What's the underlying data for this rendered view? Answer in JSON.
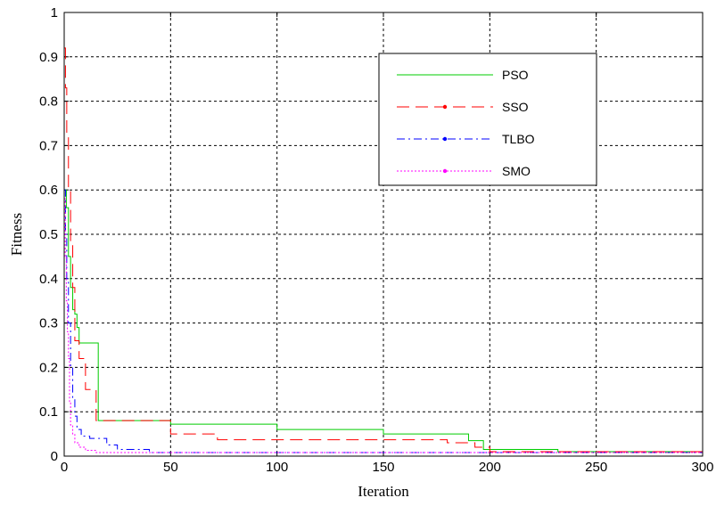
{
  "chart_data": {
    "type": "line",
    "xlabel": "Iteration",
    "ylabel": "Fitness",
    "xlim": [
      0,
      300
    ],
    "ylim": [
      0,
      1
    ],
    "xticks": [
      0,
      50,
      100,
      150,
      200,
      250,
      300
    ],
    "yticks": [
      0,
      0.1,
      0.2,
      0.3,
      0.4,
      0.5,
      0.6,
      0.7,
      0.8,
      0.9,
      1
    ],
    "grid": true,
    "legend_position": "top-right",
    "series": [
      {
        "name": "PSO",
        "color": "#00cc00",
        "style": "solid",
        "marker": "none",
        "x": [
          0,
          1,
          1,
          2,
          2,
          3,
          3,
          4,
          4,
          5,
          5,
          6,
          6,
          7,
          7,
          10,
          10,
          16,
          16,
          50,
          50,
          100,
          100,
          150,
          150,
          190,
          190,
          197,
          197,
          232,
          232,
          300
        ],
        "y": [
          0.6,
          0.6,
          0.56,
          0.56,
          0.45,
          0.45,
          0.38,
          0.38,
          0.33,
          0.33,
          0.32,
          0.32,
          0.29,
          0.29,
          0.255,
          0.255,
          0.255,
          0.255,
          0.08,
          0.08,
          0.072,
          0.072,
          0.06,
          0.06,
          0.05,
          0.05,
          0.035,
          0.035,
          0.015,
          0.015,
          0.01,
          0.01
        ]
      },
      {
        "name": "SSO",
        "color": "#ff0000",
        "style": "dash",
        "marker": "dot",
        "x": [
          0,
          0.6,
          0.6,
          1.2,
          1.2,
          2,
          2,
          3,
          3,
          4,
          4,
          5,
          5,
          7,
          7,
          10,
          10,
          15,
          15,
          50,
          50,
          72,
          72,
          180,
          180,
          193,
          193,
          200,
          200,
          300
        ],
        "y": [
          0.92,
          0.92,
          0.83,
          0.83,
          0.72,
          0.72,
          0.6,
          0.6,
          0.48,
          0.48,
          0.38,
          0.38,
          0.26,
          0.26,
          0.22,
          0.22,
          0.15,
          0.15,
          0.08,
          0.08,
          0.05,
          0.05,
          0.037,
          0.037,
          0.03,
          0.03,
          0.02,
          0.02,
          0.01,
          0.01
        ]
      },
      {
        "name": "TLBO",
        "color": "#0000ff",
        "style": "dashdot",
        "marker": "dot",
        "x": [
          0,
          0.6,
          0.6,
          1.2,
          1.2,
          2,
          2,
          3,
          3,
          4,
          4,
          5,
          5,
          6,
          6,
          8,
          8,
          12,
          12,
          20,
          20,
          25,
          25,
          40,
          40,
          300
        ],
        "y": [
          0.6,
          0.6,
          0.5,
          0.5,
          0.4,
          0.4,
          0.3,
          0.3,
          0.2,
          0.2,
          0.13,
          0.13,
          0.09,
          0.09,
          0.06,
          0.06,
          0.045,
          0.045,
          0.04,
          0.04,
          0.025,
          0.025,
          0.015,
          0.015,
          0.008,
          0.008
        ]
      },
      {
        "name": "SMO",
        "color": "#ff00ff",
        "style": "dot",
        "marker": "dot",
        "x": [
          0,
          0.5,
          0.5,
          1,
          1,
          1.5,
          1.5,
          2,
          2,
          2.5,
          2.5,
          3,
          3,
          4,
          4,
          5,
          5,
          7,
          7,
          10,
          10,
          15,
          15,
          300
        ],
        "y": [
          0.58,
          0.58,
          0.45,
          0.45,
          0.35,
          0.35,
          0.28,
          0.28,
          0.22,
          0.22,
          0.12,
          0.12,
          0.07,
          0.07,
          0.05,
          0.05,
          0.03,
          0.03,
          0.02,
          0.02,
          0.013,
          0.013,
          0.008,
          0.008
        ]
      }
    ]
  }
}
